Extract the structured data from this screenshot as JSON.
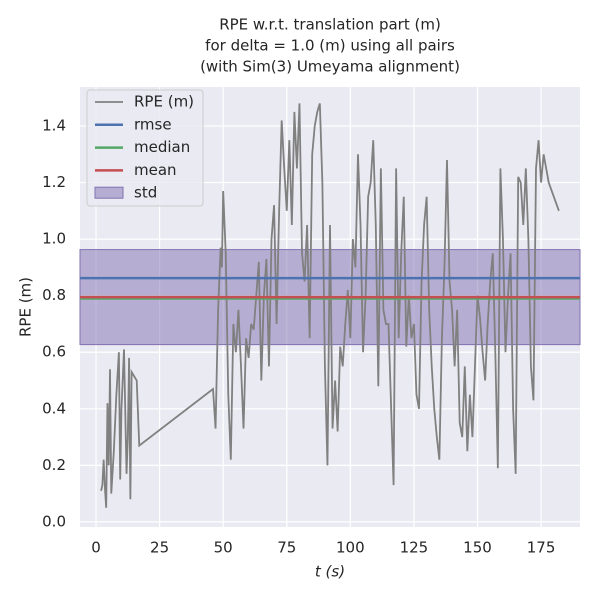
{
  "chart_data": {
    "type": "line",
    "title": [
      "RPE w.r.t. translation part (m)",
      "for delta = 1.0 (m) using all pairs",
      "(with Sim(3) Umeyama alignment)"
    ],
    "xlabel": "t (s)",
    "ylabel": "RPE (m)",
    "xlim": [
      -6.3,
      190.3
    ],
    "ylim": [
      -0.018,
      1.538
    ],
    "xticks": [
      0,
      25,
      50,
      75,
      100,
      125,
      150,
      175
    ],
    "yticks": [
      {
        "value": 0,
        "label": "0.0"
      },
      0.2,
      0.4,
      0.6,
      0.8,
      {
        "value": 1,
        "label": "1.0"
      },
      1.2,
      1.4
    ],
    "grid": true,
    "legend": "upper left",
    "series": [
      {
        "name": "RPE (m)",
        "color": "#808080",
        "x": [
          2,
          2.5,
          3,
          3.5,
          4,
          4.5,
          5,
          5.5,
          6,
          7,
          8,
          9,
          9.5,
          10,
          11,
          12,
          12.5,
          13,
          13.5,
          14,
          16,
          17,
          46,
          47,
          48,
          49,
          49.5,
          50,
          51,
          52,
          53,
          54,
          55,
          56,
          57,
          58,
          59,
          60,
          61,
          62,
          63,
          64,
          65,
          66,
          67,
          68,
          69,
          70,
          71,
          72,
          73,
          74,
          75,
          76,
          77,
          78,
          79,
          80,
          81,
          82,
          83,
          84,
          85,
          86,
          87,
          88,
          89,
          90,
          91,
          92,
          93,
          94,
          95,
          96,
          97,
          98,
          99,
          100,
          101,
          102,
          103,
          104,
          105,
          106,
          107,
          108,
          109,
          110,
          111,
          112,
          113,
          114,
          115,
          117,
          118,
          119,
          120,
          121,
          122,
          123,
          124,
          125,
          126,
          127,
          128,
          129,
          130,
          131,
          132,
          133,
          134,
          135,
          136,
          137,
          138,
          139,
          140,
          141,
          142,
          143,
          144,
          145,
          146,
          147,
          148,
          149,
          150,
          151,
          152,
          153,
          154,
          155,
          156,
          157,
          158,
          159,
          160,
          161,
          162,
          163,
          164,
          165,
          166,
          167,
          168,
          169,
          170,
          171,
          172,
          173,
          174,
          175,
          176,
          177,
          178,
          180,
          182
        ],
        "values": [
          0.11,
          0.13,
          0.22,
          0.12,
          0.05,
          0.42,
          0.2,
          0.54,
          0.1,
          0.25,
          0.45,
          0.6,
          0.15,
          0.4,
          0.61,
          0.17,
          0.3,
          0.58,
          0.08,
          0.53,
          0.5,
          0.27,
          0.47,
          0.33,
          0.75,
          0.97,
          0.9,
          1.17,
          0.95,
          0.45,
          0.22,
          0.7,
          0.6,
          0.75,
          0.55,
          0.33,
          0.65,
          0.58,
          0.7,
          0.68,
          0.8,
          0.92,
          0.5,
          0.8,
          0.93,
          0.55,
          1.0,
          1.12,
          0.7,
          1.1,
          1.42,
          1.25,
          1.1,
          1.35,
          1.05,
          1.45,
          1.25,
          1.48,
          0.95,
          0.85,
          1.05,
          0.65,
          1.3,
          1.4,
          1.45,
          1.48,
          1.2,
          0.55,
          0.2,
          1.05,
          0.33,
          0.5,
          0.32,
          0.62,
          0.55,
          0.7,
          0.82,
          0.65,
          1.0,
          0.9,
          1.3,
          1.05,
          0.6,
          0.8,
          1.15,
          1.2,
          1.35,
          1.05,
          0.48,
          1.25,
          0.75,
          0.7,
          0.7,
          0.13,
          1.25,
          0.65,
          0.95,
          1.15,
          0.62,
          0.8,
          0.65,
          0.7,
          0.45,
          0.4,
          0.85,
          1.05,
          1.15,
          0.75,
          0.55,
          0.4,
          0.3,
          0.22,
          0.65,
          0.9,
          1.28,
          0.85,
          0.75,
          0.55,
          0.75,
          0.35,
          0.3,
          0.55,
          0.25,
          0.45,
          0.3,
          0.55,
          0.8,
          0.72,
          0.6,
          0.5,
          0.7,
          0.85,
          0.95,
          0.6,
          0.19,
          1.25,
          1.0,
          0.6,
          0.8,
          0.95,
          0.4,
          0.17,
          1.22,
          1.2,
          1.05,
          1.25,
          1.0,
          0.55,
          0.43,
          1.25,
          1.35,
          1.2,
          1.3,
          1.25,
          1.2,
          1.15,
          1.1
        ]
      }
    ],
    "hlines": [
      {
        "name": "rmse",
        "color": "#4c72b0",
        "value": 0.862
      },
      {
        "name": "median",
        "color": "#55a868",
        "value": 0.79
      },
      {
        "name": "mean",
        "color": "#c44e52",
        "value": 0.795
      }
    ],
    "band": {
      "name": "std",
      "color": "#8172b2",
      "value": 0.168
    }
  }
}
